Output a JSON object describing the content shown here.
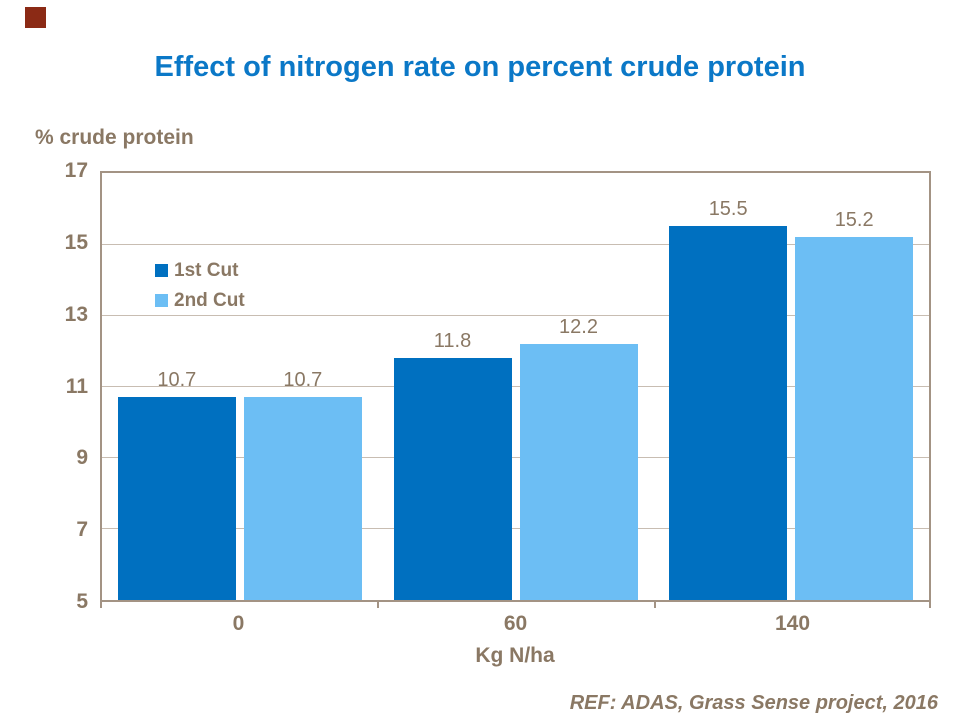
{
  "slide": {
    "footer": "REF: ADAS, Grass Sense project, 2016",
    "corner_square_color": "#8B2A15"
  },
  "colors": {
    "title_blue": "#0B78C7",
    "text_taupe": "#8A7864",
    "axis_border": "#A39384",
    "gridline": "#C8BDB2",
    "series1_blue": "#0070C0",
    "series2_light_blue": "#6CBEF4",
    "corner_red": "#8B2A15"
  },
  "chart_data": {
    "type": "bar",
    "title": "Effect of nitrogen rate on percent crude protein",
    "y_axis_title": "% crude protein",
    "xlabel": "Kg N/ha",
    "categories": [
      "0",
      "60",
      "140"
    ],
    "series": [
      {
        "name": "1st Cut",
        "color": "#0070C0",
        "values": [
          10.7,
          11.8,
          15.5
        ]
      },
      {
        "name": "2nd Cut",
        "color": "#6CBEF4",
        "values": [
          10.7,
          12.2,
          15.2
        ]
      }
    ],
    "data_labels": [
      "10.7",
      "10.7",
      "11.8",
      "12.2",
      "15.5",
      "15.2"
    ],
    "y_ticks": [
      17,
      15,
      13,
      11,
      9,
      7,
      5
    ],
    "ylim": [
      5,
      17
    ],
    "grid": true,
    "legend_position": "inside-top-left"
  }
}
